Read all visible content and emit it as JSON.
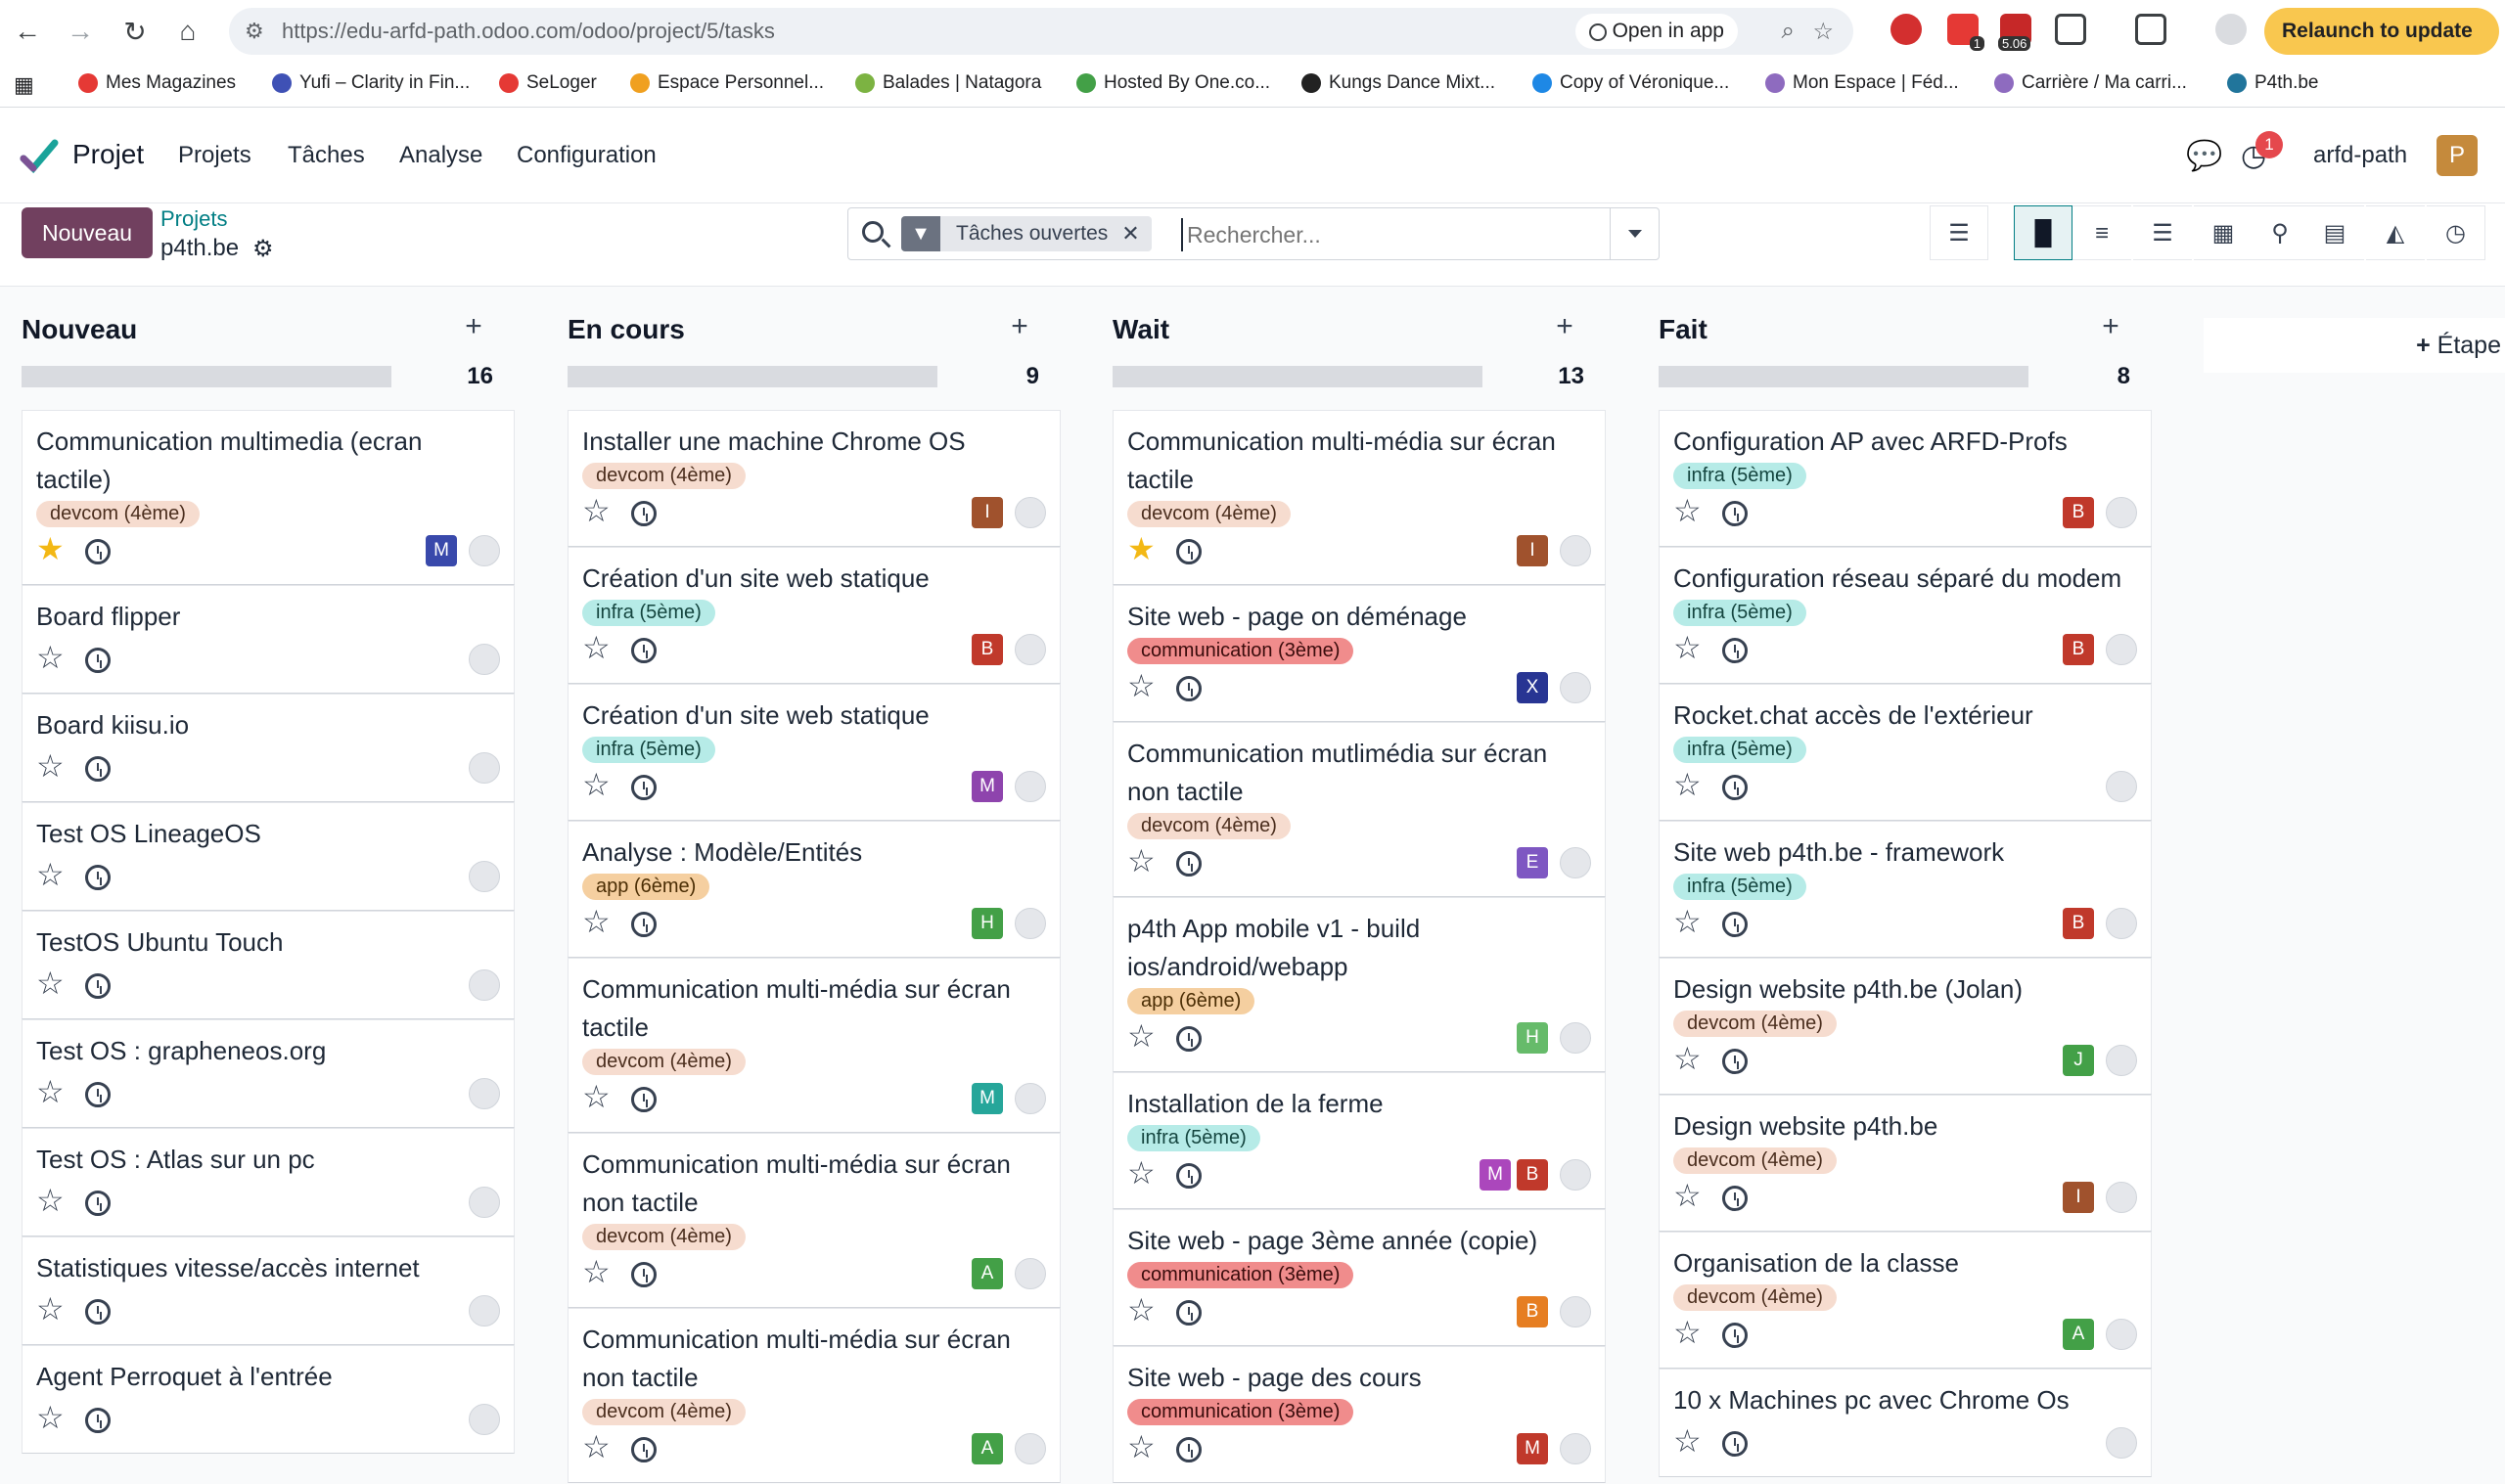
{
  "browser": {
    "url": "https://edu-arfd-path.odoo.com/odoo/project/5/tasks",
    "open_in_app": "Open in app",
    "ext_badge_1": "1",
    "ext_badge_2": "5.06",
    "relaunch": "Relaunch to update"
  },
  "bookmarks": [
    {
      "label": "Mes Magazines",
      "color": "#e53935"
    },
    {
      "label": "Yufi – Clarity in Fin...",
      "color": "#3f51b5"
    },
    {
      "label": "SeLoger",
      "color": "#e53935"
    },
    {
      "label": "Espace Personnel...",
      "color": "#f0a020"
    },
    {
      "label": "Balades | Natagora",
      "color": "#7cb342"
    },
    {
      "label": "Hosted By One.co...",
      "color": "#43a047"
    },
    {
      "label": "Kungs Dance Mixt...",
      "color": "#222222"
    },
    {
      "label": "Copy of Véronique...",
      "color": "#1e88e5"
    },
    {
      "label": "Mon Espace | Féd...",
      "color": "#8e6bbf"
    },
    {
      "label": "Carrière / Ma carri...",
      "color": "#8e6bbf"
    },
    {
      "label": "P4th.be",
      "color": "#21759b"
    }
  ],
  "navbar": {
    "app_name": "Projet",
    "menu": [
      "Projets",
      "Tâches",
      "Analyse",
      "Configuration"
    ],
    "activity_count": "1",
    "user": "arfd-path",
    "avatar_letter": "P"
  },
  "control": {
    "new_button": "Nouveau",
    "breadcrumb_parent": "Projets",
    "breadcrumb_current": "p4th.be",
    "facet": "Tâches ouvertes",
    "search_placeholder": "Rechercher..."
  },
  "add_stage": "Étape",
  "columns": [
    {
      "title": "Nouveau",
      "count": "16",
      "cards": [
        {
          "title": "Communication multimedia (ecran tactile)",
          "tag": "devcom (4ème)",
          "tag_type": "devcom",
          "starred": true,
          "avatars": [
            {
              "l": "M",
              "c": "#3949ab"
            }
          ]
        },
        {
          "title": "Board flipper",
          "tag": "",
          "tag_type": "",
          "starred": false,
          "avatars": []
        },
        {
          "title": "Board kiisu.io",
          "tag": "",
          "tag_type": "",
          "starred": false,
          "avatars": []
        },
        {
          "title": "Test OS LineageOS",
          "tag": "",
          "tag_type": "",
          "starred": false,
          "avatars": []
        },
        {
          "title": "TestOS Ubuntu Touch",
          "tag": "",
          "tag_type": "",
          "starred": false,
          "avatars": []
        },
        {
          "title": "Test OS : grapheneos.org",
          "tag": "",
          "tag_type": "",
          "starred": false,
          "avatars": []
        },
        {
          "title": "Test OS : Atlas sur un pc",
          "tag": "",
          "tag_type": "",
          "starred": false,
          "avatars": []
        },
        {
          "title": "Statistiques vitesse/accès internet",
          "tag": "",
          "tag_type": "",
          "starred": false,
          "avatars": []
        },
        {
          "title": "Agent Perroquet à l'entrée",
          "tag": "",
          "tag_type": "",
          "starred": false,
          "avatars": []
        }
      ]
    },
    {
      "title": "En cours",
      "count": "9",
      "cards": [
        {
          "title": "Installer une machine Chrome OS",
          "tag": "devcom (4ème)",
          "tag_type": "devcom",
          "starred": false,
          "avatars": [
            {
              "l": "I",
              "c": "#a0522d"
            }
          ]
        },
        {
          "title": "Création d'un site web statique",
          "tag": "infra (5ème)",
          "tag_type": "infra",
          "starred": false,
          "avatars": [
            {
              "l": "B",
              "c": "#c0392b"
            }
          ]
        },
        {
          "title": "Création d'un site web statique",
          "tag": "infra (5ème)",
          "tag_type": "infra",
          "starred": false,
          "avatars": [
            {
              "l": "M",
              "c": "#8e44ad"
            }
          ]
        },
        {
          "title": "Analyse : Modèle/Entités",
          "tag": "app (6ème)",
          "tag_type": "app",
          "starred": false,
          "avatars": [
            {
              "l": "H",
              "c": "#43a047"
            }
          ]
        },
        {
          "title": "Communication multi-média sur écran tactile",
          "tag": "devcom (4ème)",
          "tag_type": "devcom",
          "starred": false,
          "avatars": [
            {
              "l": "M",
              "c": "#26a69a"
            }
          ]
        },
        {
          "title": "Communication multi-média sur écran non tactile",
          "tag": "devcom (4ème)",
          "tag_type": "devcom",
          "starred": false,
          "avatars": [
            {
              "l": "A",
              "c": "#43a047"
            }
          ]
        },
        {
          "title": "Communication multi-média sur écran non tactile",
          "tag": "devcom (4ème)",
          "tag_type": "devcom",
          "starred": false,
          "avatars": [
            {
              "l": "A",
              "c": "#43a047"
            }
          ]
        }
      ]
    },
    {
      "title": "Wait",
      "count": "13",
      "cards": [
        {
          "title": "Communication multi-média sur écran tactile",
          "tag": "devcom (4ème)",
          "tag_type": "devcom",
          "starred": true,
          "avatars": [
            {
              "l": "I",
              "c": "#a0522d"
            }
          ]
        },
        {
          "title": "Site web - page on déménage",
          "tag": "communication (3ème)",
          "tag_type": "communication",
          "starred": false,
          "avatars": [
            {
              "l": "X",
              "c": "#283593"
            }
          ]
        },
        {
          "title": "Communication mutlimédia sur écran non tactile",
          "tag": "devcom (4ème)",
          "tag_type": "devcom",
          "starred": false,
          "avatars": [
            {
              "l": "E",
              "c": "#7e57c2"
            }
          ]
        },
        {
          "title": "p4th App mobile v1 - build ios/android/webapp",
          "tag": "app (6ème)",
          "tag_type": "app",
          "starred": false,
          "avatars": [
            {
              "l": "H",
              "c": "#66bb6a"
            }
          ]
        },
        {
          "title": "Installation de la ferme",
          "tag": "infra (5ème)",
          "tag_type": "infra",
          "starred": false,
          "avatars": [
            {
              "l": "M",
              "c": "#ab47bc"
            },
            {
              "l": "B",
              "c": "#c0392b"
            }
          ]
        },
        {
          "title": "Site web - page 3ème année (copie)",
          "tag": "communication (3ème)",
          "tag_type": "communication",
          "starred": false,
          "avatars": [
            {
              "l": "B",
              "c": "#e67e22"
            }
          ]
        },
        {
          "title": "Site web - page des cours",
          "tag": "communication (3ème)",
          "tag_type": "communication",
          "starred": false,
          "avatars": [
            {
              "l": "M",
              "c": "#c0392b"
            }
          ]
        }
      ]
    },
    {
      "title": "Fait",
      "count": "8",
      "cards": [
        {
          "title": "Configuration AP avec ARFD-Profs",
          "tag": "infra (5ème)",
          "tag_type": "infra",
          "starred": false,
          "avatars": [
            {
              "l": "B",
              "c": "#c0392b"
            }
          ]
        },
        {
          "title": "Configuration réseau séparé du modem",
          "tag": "infra (5ème)",
          "tag_type": "infra",
          "starred": false,
          "avatars": [
            {
              "l": "B",
              "c": "#c0392b"
            }
          ]
        },
        {
          "title": "Rocket.chat accès de l'extérieur",
          "tag": "infra (5ème)",
          "tag_type": "infra",
          "starred": false,
          "avatars": []
        },
        {
          "title": "Site web p4th.be - framework",
          "tag": "infra (5ème)",
          "tag_type": "infra",
          "starred": false,
          "avatars": [
            {
              "l": "B",
              "c": "#c0392b"
            }
          ]
        },
        {
          "title": "Design website p4th.be (Jolan)",
          "tag": "devcom (4ème)",
          "tag_type": "devcom",
          "starred": false,
          "avatars": [
            {
              "l": "J",
              "c": "#43a047"
            }
          ]
        },
        {
          "title": "Design website p4th.be",
          "tag": "devcom (4ème)",
          "tag_type": "devcom",
          "starred": false,
          "avatars": [
            {
              "l": "I",
              "c": "#a0522d"
            }
          ]
        },
        {
          "title": "Organisation de la classe",
          "tag": "devcom (4ème)",
          "tag_type": "devcom",
          "starred": false,
          "avatars": [
            {
              "l": "A",
              "c": "#43a047"
            }
          ]
        },
        {
          "title": "10 x Machines pc avec Chrome Os",
          "tag": "",
          "tag_type": "",
          "starred": false,
          "avatars": []
        }
      ]
    }
  ]
}
